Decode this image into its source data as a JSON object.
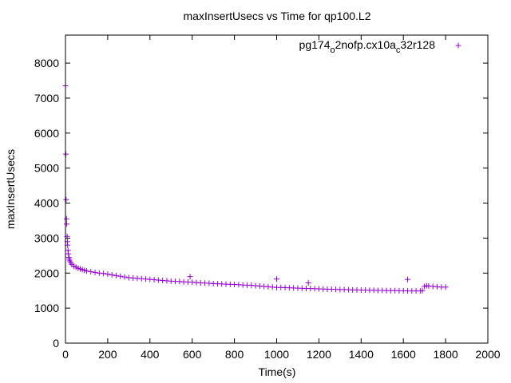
{
  "chart_data": {
    "type": "scatter",
    "title": "maxInsertUsecs vs Time for qp100.L2",
    "xlabel": "Time(s)",
    "ylabel": "maxInsertUsecs",
    "xlim": [
      0,
      2000
    ],
    "ylim": [
      0,
      8800
    ],
    "x_ticks": [
      "0",
      "200",
      "400",
      "600",
      "800",
      "1000",
      "1200",
      "1400",
      "1600",
      "1800",
      "2000"
    ],
    "y_ticks": [
      "0",
      "1000",
      "2000",
      "3000",
      "4000",
      "5000",
      "6000",
      "7000",
      "8000"
    ],
    "grid": false,
    "legend_position": "top-right",
    "marker": "+",
    "series": [
      {
        "name_parts": [
          "pg174",
          "o",
          "2nofp.cx10a",
          "c",
          "32r128"
        ],
        "color": "#9400d3",
        "points": [
          [
            0,
            7350
          ],
          [
            2,
            5400
          ],
          [
            3,
            4100
          ],
          [
            5,
            3550
          ],
          [
            6,
            3400
          ],
          [
            8,
            3050
          ],
          [
            9,
            2900
          ],
          [
            10,
            2800
          ],
          [
            12,
            2650
          ],
          [
            14,
            2550
          ],
          [
            16,
            2450
          ],
          [
            18,
            2400
          ],
          [
            20,
            2350
          ],
          [
            25,
            2300
          ],
          [
            30,
            2250
          ],
          [
            40,
            2200
          ],
          [
            50,
            2170
          ],
          [
            60,
            2140
          ],
          [
            70,
            2120
          ],
          [
            80,
            2100
          ],
          [
            90,
            2080
          ],
          [
            100,
            2060
          ],
          [
            120,
            2040
          ],
          [
            140,
            2020
          ],
          [
            160,
            2000
          ],
          [
            180,
            1990
          ],
          [
            200,
            1970
          ],
          [
            220,
            1950
          ],
          [
            240,
            1930
          ],
          [
            260,
            1910
          ],
          [
            280,
            1890
          ],
          [
            300,
            1870
          ],
          [
            320,
            1860
          ],
          [
            340,
            1850
          ],
          [
            360,
            1840
          ],
          [
            380,
            1830
          ],
          [
            400,
            1820
          ],
          [
            420,
            1810
          ],
          [
            440,
            1800
          ],
          [
            460,
            1790
          ],
          [
            480,
            1780
          ],
          [
            500,
            1770
          ],
          [
            520,
            1765
          ],
          [
            540,
            1760
          ],
          [
            560,
            1750
          ],
          [
            580,
            1745
          ],
          [
            590,
            1900
          ],
          [
            600,
            1740
          ],
          [
            620,
            1730
          ],
          [
            640,
            1720
          ],
          [
            660,
            1715
          ],
          [
            680,
            1710
          ],
          [
            700,
            1700
          ],
          [
            720,
            1695
          ],
          [
            740,
            1690
          ],
          [
            760,
            1685
          ],
          [
            780,
            1680
          ],
          [
            800,
            1675
          ],
          [
            820,
            1670
          ],
          [
            840,
            1660
          ],
          [
            860,
            1655
          ],
          [
            880,
            1650
          ],
          [
            900,
            1640
          ],
          [
            920,
            1630
          ],
          [
            940,
            1620
          ],
          [
            960,
            1610
          ],
          [
            980,
            1600
          ],
          [
            1000,
            1830
          ],
          [
            1000,
            1590
          ],
          [
            1020,
            1590
          ],
          [
            1040,
            1585
          ],
          [
            1060,
            1580
          ],
          [
            1080,
            1575
          ],
          [
            1100,
            1570
          ],
          [
            1120,
            1565
          ],
          [
            1140,
            1560
          ],
          [
            1150,
            1720
          ],
          [
            1160,
            1560
          ],
          [
            1180,
            1555
          ],
          [
            1200,
            1550
          ],
          [
            1220,
            1545
          ],
          [
            1240,
            1540
          ],
          [
            1260,
            1540
          ],
          [
            1280,
            1535
          ],
          [
            1300,
            1530
          ],
          [
            1320,
            1530
          ],
          [
            1340,
            1525
          ],
          [
            1360,
            1520
          ],
          [
            1380,
            1520
          ],
          [
            1400,
            1515
          ],
          [
            1420,
            1515
          ],
          [
            1440,
            1510
          ],
          [
            1460,
            1510
          ],
          [
            1480,
            1505
          ],
          [
            1500,
            1505
          ],
          [
            1520,
            1500
          ],
          [
            1540,
            1500
          ],
          [
            1560,
            1500
          ],
          [
            1580,
            1495
          ],
          [
            1600,
            1495
          ],
          [
            1620,
            1820
          ],
          [
            1620,
            1490
          ],
          [
            1640,
            1490
          ],
          [
            1660,
            1490
          ],
          [
            1680,
            1490
          ],
          [
            1690,
            1500
          ],
          [
            1700,
            1620
          ],
          [
            1710,
            1640
          ],
          [
            1720,
            1630
          ],
          [
            1740,
            1620
          ],
          [
            1760,
            1610
          ],
          [
            1780,
            1600
          ],
          [
            1800,
            1600
          ]
        ]
      }
    ]
  }
}
